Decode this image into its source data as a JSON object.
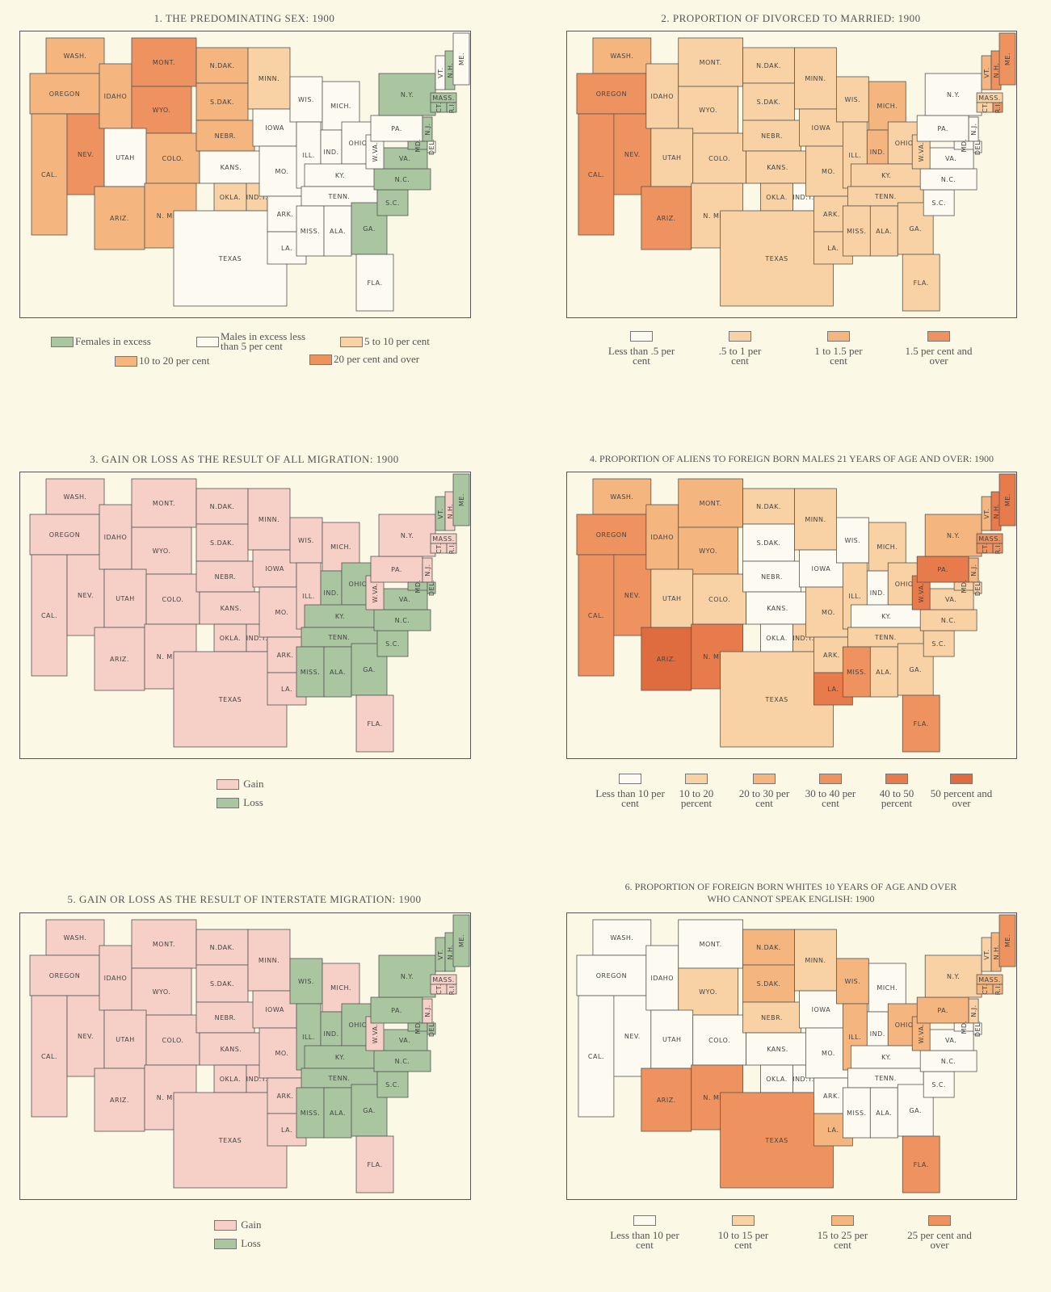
{
  "colors": {
    "background": "#fbf8e6",
    "green": "#a9c6a0",
    "white": "#fdfbf1",
    "pink": "#f6d0c6",
    "light": "#f8d2a4",
    "medium": "#f5b57f",
    "dark": "#ee935f",
    "darker": "#e77b4b",
    "darkest": "#de6c3e"
  },
  "states": [
    {
      "id": "WA",
      "label": "WASH."
    },
    {
      "id": "OR",
      "label": "OREGON"
    },
    {
      "id": "CA",
      "label": "CAL."
    },
    {
      "id": "NV",
      "label": "NEV."
    },
    {
      "id": "ID",
      "label": "IDAHO"
    },
    {
      "id": "MT",
      "label": "MONT."
    },
    {
      "id": "WY",
      "label": "WYO."
    },
    {
      "id": "UT",
      "label": "UTAH"
    },
    {
      "id": "CO",
      "label": "COLO."
    },
    {
      "id": "AZ",
      "label": "ARIZ."
    },
    {
      "id": "NM",
      "label": "N. MEX."
    },
    {
      "id": "ND",
      "label": "N.DAK."
    },
    {
      "id": "SD",
      "label": "S.DAK."
    },
    {
      "id": "NE",
      "label": "NEBR."
    },
    {
      "id": "KS",
      "label": "KANS."
    },
    {
      "id": "OK",
      "label": "OKLA."
    },
    {
      "id": "IT",
      "label": "IND.T."
    },
    {
      "id": "TX",
      "label": "TEXAS"
    },
    {
      "id": "MN",
      "label": "MINN."
    },
    {
      "id": "IA",
      "label": "IOWA"
    },
    {
      "id": "MO",
      "label": "MO."
    },
    {
      "id": "AR",
      "label": "ARK."
    },
    {
      "id": "LA",
      "label": "LA."
    },
    {
      "id": "WI",
      "label": "WIS."
    },
    {
      "id": "IL",
      "label": "ILL."
    },
    {
      "id": "MI",
      "label": "MICH."
    },
    {
      "id": "IN",
      "label": "IND."
    },
    {
      "id": "OH",
      "label": "OHIO"
    },
    {
      "id": "KY",
      "label": "KY."
    },
    {
      "id": "TN",
      "label": "TENN."
    },
    {
      "id": "MS",
      "label": "MISS."
    },
    {
      "id": "AL",
      "label": "ALA."
    },
    {
      "id": "GA",
      "label": "GA."
    },
    {
      "id": "FL",
      "label": "FLA."
    },
    {
      "id": "SC",
      "label": "S.C."
    },
    {
      "id": "NC",
      "label": "N.C."
    },
    {
      "id": "VA",
      "label": "VA."
    },
    {
      "id": "WV",
      "label": "W.VA."
    },
    {
      "id": "PA",
      "label": "PA."
    },
    {
      "id": "NY",
      "label": "N.Y."
    },
    {
      "id": "VT",
      "label": "VT."
    },
    {
      "id": "NH",
      "label": "N.H."
    },
    {
      "id": "ME",
      "label": "ME."
    },
    {
      "id": "MA",
      "label": "MASS."
    },
    {
      "id": "CT",
      "label": "CT."
    },
    {
      "id": "RI",
      "label": "R.I."
    },
    {
      "id": "NJ",
      "label": "N.J."
    },
    {
      "id": "MD",
      "label": "MD."
    },
    {
      "id": "DE",
      "label": "DEL."
    }
  ],
  "maps": [
    {
      "title": "1. THE PREDOMINATING SEX: 1900",
      "legend": [
        {
          "key": "f",
          "color": "#a9c6a0",
          "label": "Females in excess"
        },
        {
          "key": "m",
          "color": "#fdfbf1",
          "label": "Males in excess less than 5 per cent"
        },
        {
          "key": "a",
          "color": "#f8d2a4",
          "label": "5 to 10 per cent"
        },
        {
          "key": "b",
          "color": "#f5b57f",
          "label": "10 to 20 per cent"
        },
        {
          "key": "c",
          "color": "#ee935f",
          "label": "20 per cent and over"
        }
      ],
      "values": {
        "WA": "b",
        "OR": "b",
        "CA": "b",
        "NV": "c",
        "ID": "b",
        "MT": "c",
        "WY": "c",
        "UT": "m",
        "CO": "b",
        "AZ": "b",
        "NM": "b",
        "ND": "b",
        "SD": "b",
        "NE": "b",
        "KS": "m",
        "OK": "a",
        "IT": "a",
        "TX": "m",
        "MN": "a",
        "IA": "m",
        "MO": "m",
        "AR": "m",
        "LA": "m",
        "WI": "m",
        "IL": "m",
        "MI": "m",
        "IN": "m",
        "OH": "m",
        "KY": "m",
        "TN": "m",
        "MS": "m",
        "AL": "m",
        "GA": "f",
        "FL": "m",
        "SC": "f",
        "NC": "f",
        "VA": "f",
        "WV": "m",
        "PA": "m",
        "NY": "f",
        "VT": "m",
        "NH": "f",
        "ME": "m",
        "MA": "f",
        "CT": "f",
        "RI": "f",
        "NJ": "f",
        "MD": "f",
        "DE": "m"
      }
    },
    {
      "title": "2. PROPORTION OF DIVORCED TO MARRIED: 1900",
      "legend": [
        {
          "key": "w",
          "color": "#fdfbf1",
          "label": "Less than .5 per cent"
        },
        {
          "key": "a",
          "color": "#f8d2a4",
          "label": ".5 to 1 per cent"
        },
        {
          "key": "b",
          "color": "#f5b57f",
          "label": "1 to 1.5 per cent"
        },
        {
          "key": "c",
          "color": "#ee935f",
          "label": "1.5 per cent and over"
        }
      ],
      "values": {
        "WA": "b",
        "OR": "c",
        "CA": "c",
        "NV": "c",
        "ID": "a",
        "MT": "a",
        "WY": "a",
        "UT": "a",
        "CO": "a",
        "AZ": "c",
        "NM": "a",
        "ND": "a",
        "SD": "a",
        "NE": "a",
        "KS": "a",
        "OK": "a",
        "IT": "w",
        "TX": "a",
        "MN": "a",
        "IA": "a",
        "MO": "a",
        "AR": "a",
        "LA": "a",
        "WI": "a",
        "IL": "a",
        "MI": "b",
        "IN": "b",
        "OH": "a",
        "KY": "a",
        "TN": "a",
        "MS": "a",
        "AL": "a",
        "GA": "a",
        "FL": "a",
        "SC": "w",
        "NC": "w",
        "VA": "w",
        "WV": "a",
        "PA": "w",
        "NY": "w",
        "VT": "b",
        "NH": "c",
        "ME": "c",
        "MA": "a",
        "CT": "a",
        "RI": "c",
        "NJ": "w",
        "MD": "w",
        "DE": "w"
      }
    },
    {
      "title": "3. GAIN OR LOSS AS THE RESULT OF ALL MIGRATION: 1900",
      "legend": [
        {
          "key": "g",
          "color": "#f6d0c6",
          "label": "Gain"
        },
        {
          "key": "l",
          "color": "#a9c6a0",
          "label": "Loss"
        }
      ],
      "values": {
        "WA": "g",
        "OR": "g",
        "CA": "g",
        "NV": "g",
        "ID": "g",
        "MT": "g",
        "WY": "g",
        "UT": "g",
        "CO": "g",
        "AZ": "g",
        "NM": "g",
        "ND": "g",
        "SD": "g",
        "NE": "g",
        "KS": "g",
        "OK": "g",
        "IT": "g",
        "TX": "g",
        "MN": "g",
        "IA": "g",
        "MO": "g",
        "AR": "g",
        "LA": "g",
        "WI": "g",
        "IL": "g",
        "MI": "g",
        "IN": "l",
        "OH": "l",
        "KY": "l",
        "TN": "l",
        "MS": "l",
        "AL": "l",
        "GA": "l",
        "FL": "g",
        "SC": "l",
        "NC": "l",
        "VA": "l",
        "WV": "g",
        "PA": "g",
        "NY": "g",
        "VT": "l",
        "NH": "g",
        "ME": "l",
        "MA": "g",
        "CT": "g",
        "RI": "g",
        "NJ": "g",
        "MD": "l",
        "DE": "l"
      }
    },
    {
      "title": "4. PROPORTION OF ALIENS TO FOREIGN BORN MALES 21 YEARS OF AGE AND OVER: 1900",
      "legend": [
        {
          "key": "w",
          "color": "#fdfbf1",
          "label": "Less than 10 per cent"
        },
        {
          "key": "a",
          "color": "#f8d2a4",
          "label": "10 to 20 percent"
        },
        {
          "key": "b",
          "color": "#f5b57f",
          "label": "20 to 30 per cent"
        },
        {
          "key": "c",
          "color": "#ee935f",
          "label": "30 to 40 per cent"
        },
        {
          "key": "d",
          "color": "#e77b4b",
          "label": "40 to 50 percent"
        },
        {
          "key": "e",
          "color": "#de6c3e",
          "label": "50 percent and over"
        }
      ],
      "values": {
        "WA": "b",
        "OR": "c",
        "CA": "c",
        "NV": "c",
        "ID": "b",
        "MT": "b",
        "WY": "b",
        "UT": "a",
        "CO": "a",
        "AZ": "e",
        "NM": "d",
        "ND": "a",
        "SD": "w",
        "NE": "w",
        "KS": "w",
        "OK": "w",
        "IT": "a",
        "TX": "a",
        "MN": "a",
        "IA": "w",
        "MO": "a",
        "AR": "a",
        "LA": "d",
        "WI": "w",
        "IL": "a",
        "MI": "a",
        "IN": "w",
        "OH": "a",
        "KY": "w",
        "TN": "a",
        "MS": "c",
        "AL": "a",
        "GA": "a",
        "FL": "c",
        "SC": "a",
        "NC": "a",
        "VA": "a",
        "WV": "d",
        "PA": "d",
        "NY": "b",
        "VT": "b",
        "NH": "d",
        "ME": "d",
        "MA": "c",
        "CT": "c",
        "RI": "c",
        "NJ": "b",
        "MD": "a",
        "DE": "a"
      }
    },
    {
      "title": "5. GAIN OR LOSS AS THE RESULT OF INTERSTATE MIGRATION: 1900",
      "legend": [
        {
          "key": "g",
          "color": "#f6d0c6",
          "label": "Gain"
        },
        {
          "key": "l",
          "color": "#a9c6a0",
          "label": "Loss"
        }
      ],
      "values": {
        "WA": "g",
        "OR": "g",
        "CA": "g",
        "NV": "g",
        "ID": "g",
        "MT": "g",
        "WY": "g",
        "UT": "g",
        "CO": "g",
        "AZ": "g",
        "NM": "g",
        "ND": "g",
        "SD": "g",
        "NE": "g",
        "KS": "g",
        "OK": "g",
        "IT": "g",
        "TX": "g",
        "MN": "g",
        "IA": "g",
        "MO": "g",
        "AR": "g",
        "LA": "g",
        "WI": "l",
        "IL": "l",
        "MI": "g",
        "IN": "l",
        "OH": "l",
        "KY": "l",
        "TN": "l",
        "MS": "l",
        "AL": "l",
        "GA": "l",
        "FL": "g",
        "SC": "l",
        "NC": "l",
        "VA": "l",
        "WV": "g",
        "PA": "l",
        "NY": "l",
        "VT": "l",
        "NH": "l",
        "ME": "l",
        "MA": "g",
        "CT": "g",
        "RI": "g",
        "NJ": "g",
        "MD": "l",
        "DE": "l"
      }
    },
    {
      "title": "6. PROPORTION OF FOREIGN BORN WHITES 10 YEARS OF AGE AND OVER",
      "title2": "WHO CANNOT SPEAK ENGLISH: 1900",
      "legend": [
        {
          "key": "w",
          "color": "#fdfbf1",
          "label": "Less than 10 per cent"
        },
        {
          "key": "a",
          "color": "#f8d2a4",
          "label": "10 to 15 per cent"
        },
        {
          "key": "b",
          "color": "#f5b57f",
          "label": "15 to 25 per cent"
        },
        {
          "key": "c",
          "color": "#ee935f",
          "label": "25 per cent and over"
        }
      ],
      "values": {
        "WA": "w",
        "OR": "w",
        "CA": "w",
        "NV": "w",
        "ID": "w",
        "MT": "w",
        "WY": "a",
        "UT": "w",
        "CO": "w",
        "AZ": "c",
        "NM": "c",
        "ND": "b",
        "SD": "b",
        "NE": "a",
        "KS": "w",
        "OK": "w",
        "IT": "w",
        "TX": "c",
        "MN": "a",
        "IA": "w",
        "MO": "w",
        "AR": "w",
        "LA": "b",
        "WI": "b",
        "IL": "b",
        "MI": "w",
        "IN": "w",
        "OH": "b",
        "KY": "w",
        "TN": "w",
        "MS": "w",
        "AL": "w",
        "GA": "w",
        "FL": "c",
        "SC": "w",
        "NC": "w",
        "VA": "w",
        "WV": "b",
        "PA": "b",
        "NY": "a",
        "VT": "a",
        "NH": "b",
        "ME": "c",
        "MA": "b",
        "CT": "b",
        "RI": "b",
        "NJ": "a",
        "MD": "w",
        "DE": "w"
      }
    }
  ]
}
